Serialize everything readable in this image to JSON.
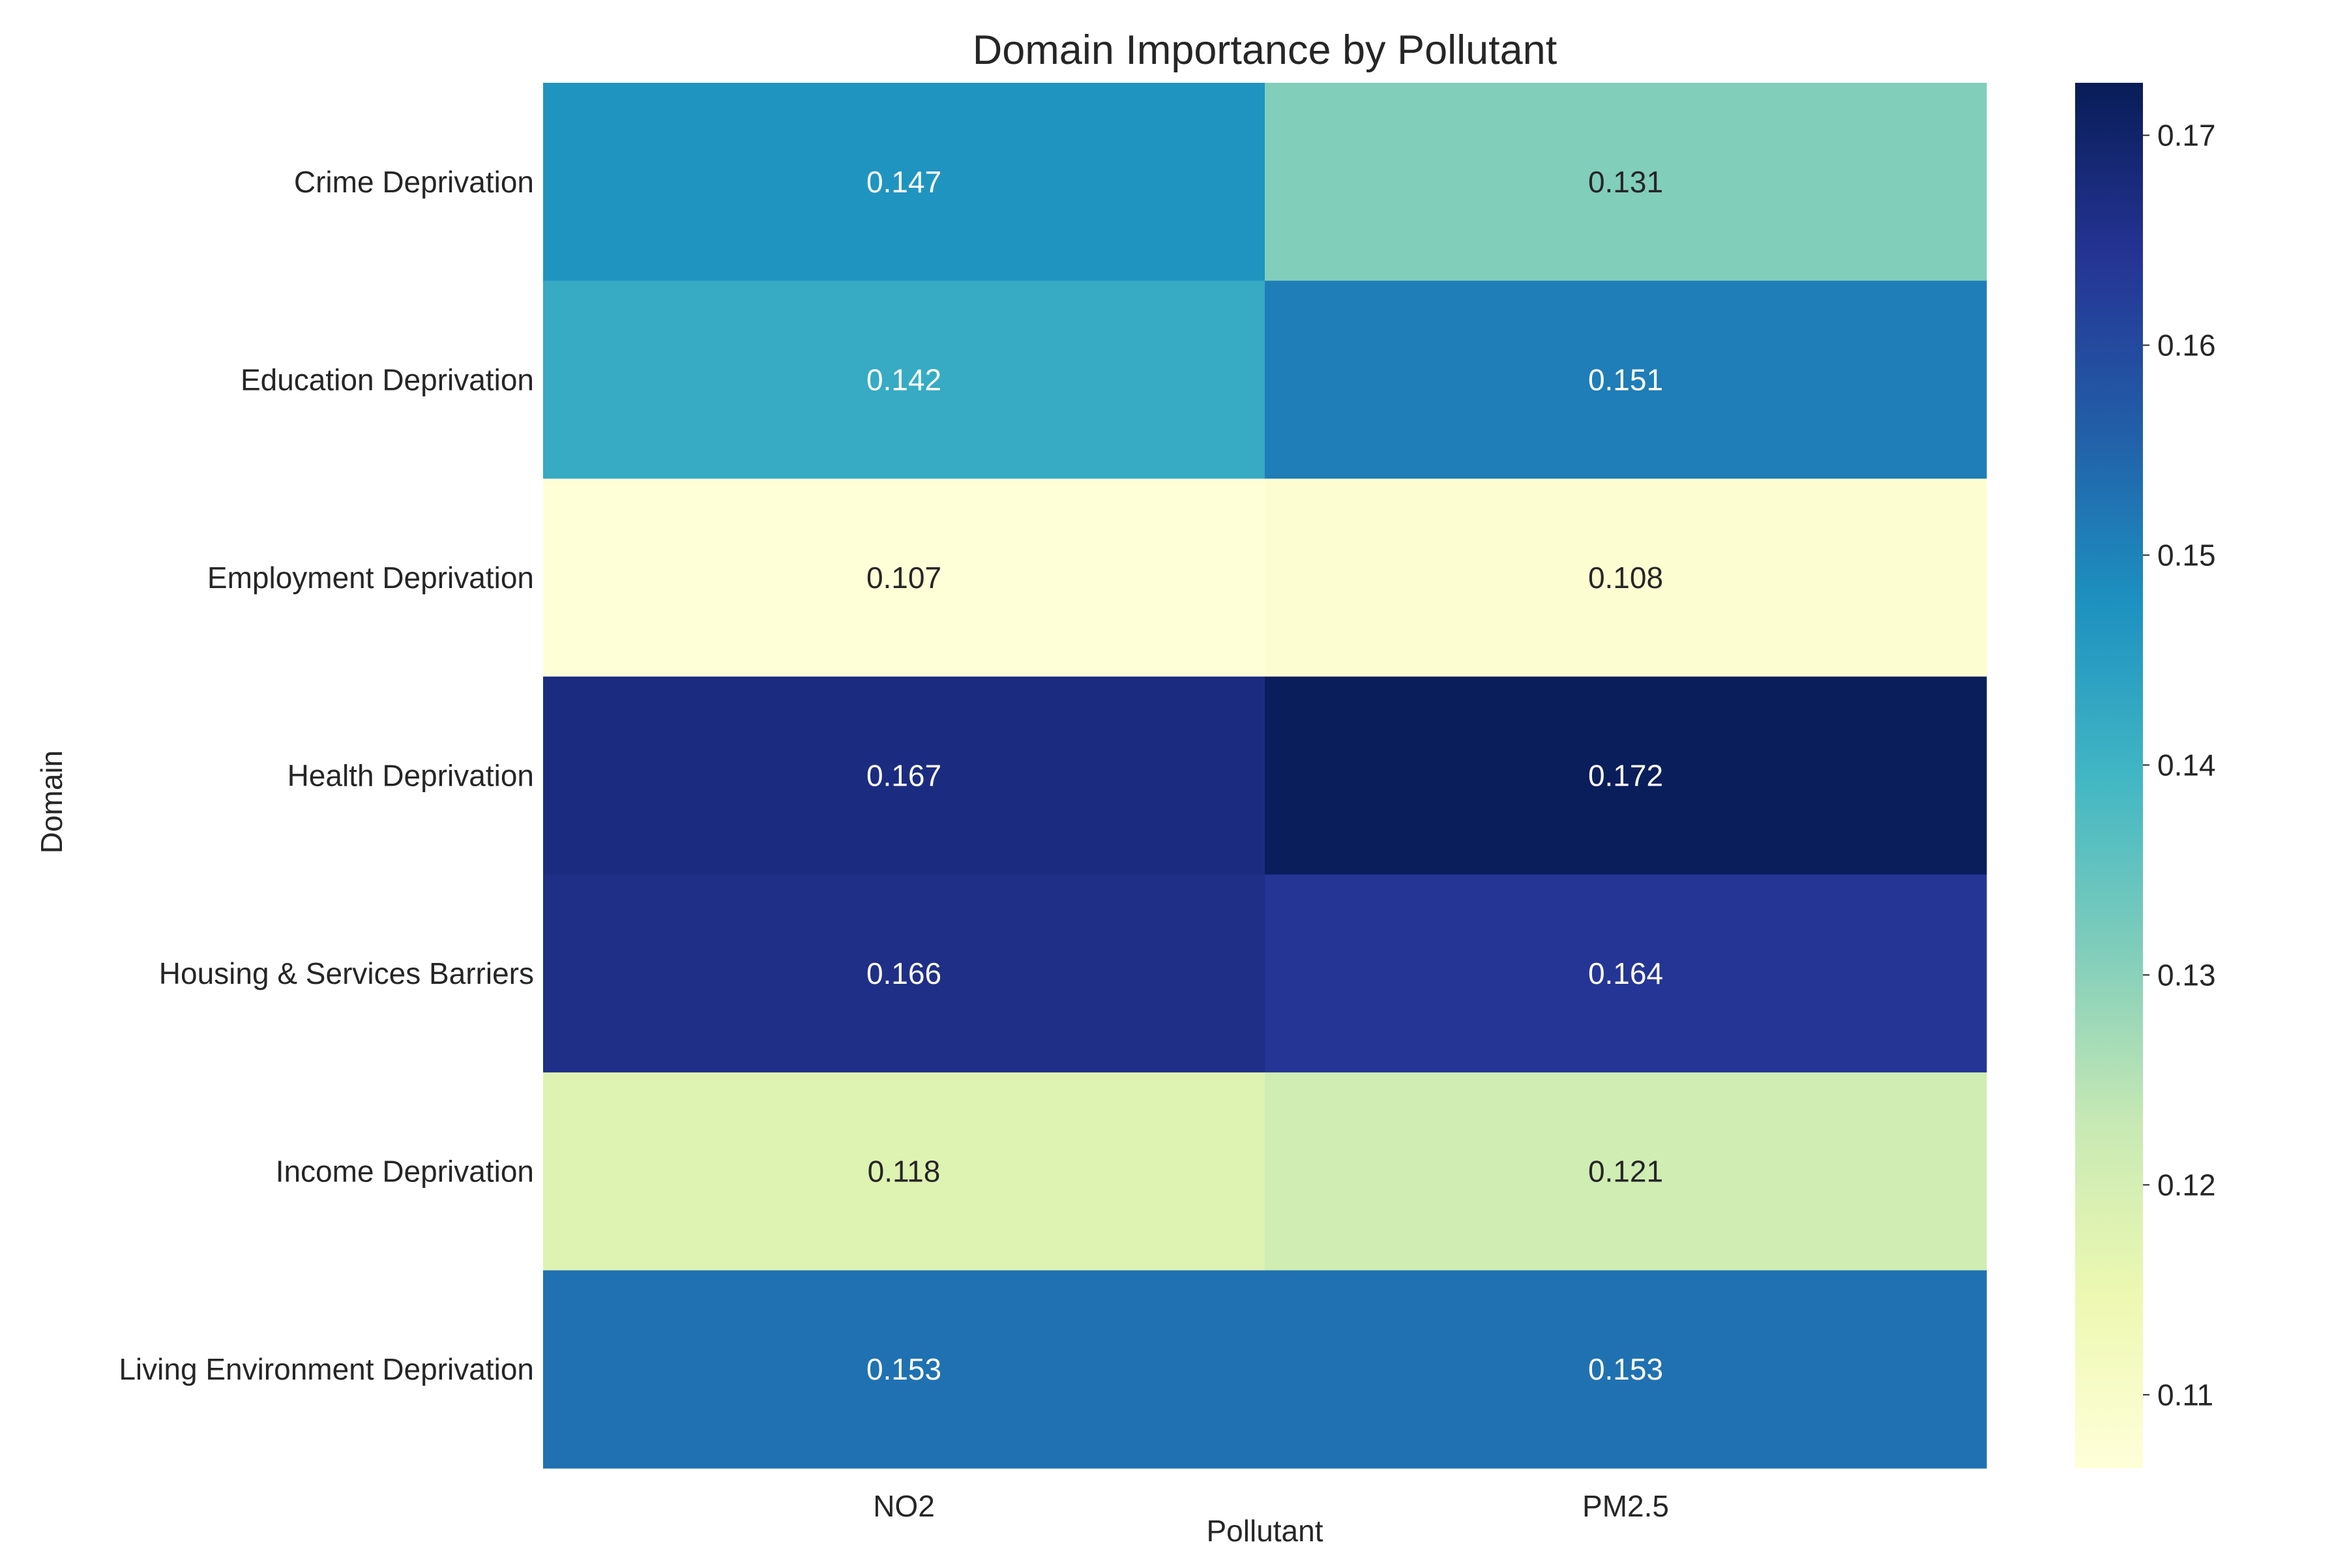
{
  "chart_data": {
    "type": "heatmap",
    "title": "Domain Importance by Pollutant",
    "xlabel": "Pollutant",
    "ylabel": "Domain",
    "columns": [
      "NO2",
      "PM2.5"
    ],
    "rows": [
      "Crime Deprivation",
      "Education Deprivation",
      "Employment Deprivation",
      "Health Deprivation",
      "Housing & Services Barriers",
      "Income Deprivation",
      "Living Environment Deprivation"
    ],
    "values": [
      [
        0.147,
        0.131
      ],
      [
        0.142,
        0.151
      ],
      [
        0.107,
        0.108
      ],
      [
        0.167,
        0.172
      ],
      [
        0.166,
        0.164
      ],
      [
        0.118,
        0.121
      ],
      [
        0.153,
        0.153
      ]
    ],
    "colorscale": "YlGnBu",
    "color_range": [
      0.1065,
      0.1725
    ],
    "colorbar_ticks": [
      "0.11",
      "0.12",
      "0.13",
      "0.14",
      "0.15",
      "0.16",
      "0.17"
    ],
    "colorbar_tick_values": [
      0.11,
      0.12,
      0.13,
      0.14,
      0.15,
      0.16,
      0.17
    ],
    "annotations_shown": true,
    "grid": false
  }
}
